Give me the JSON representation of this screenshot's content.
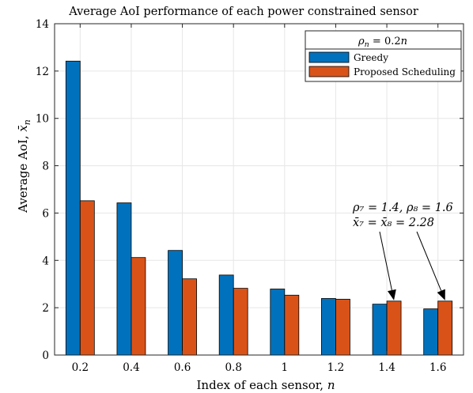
{
  "chart_data": {
    "type": "bar",
    "title": "Average AoI performance of each power constrained sensor",
    "xlabel": "Index of each sensor, ",
    "xlabel_var": "n",
    "ylabel": "Average AoI, ",
    "ylabel_var": "x̄",
    "ylabel_sub": "n",
    "categories": [
      "0.2",
      "0.4",
      "0.6",
      "0.8",
      "1",
      "1.2",
      "1.4",
      "1.6"
    ],
    "ylim": [
      0,
      14
    ],
    "yticks": [
      "0",
      "2",
      "4",
      "6",
      "8",
      "10",
      "12",
      "14"
    ],
    "grid": true,
    "legend_position": "top-right",
    "legend_title_var": "ρ",
    "legend_title_sub": "n",
    "legend_title_rest": " = 0.2",
    "legend_title_tail": "n",
    "series": [
      {
        "name": "Greedy",
        "color": "#0072BD",
        "values": [
          12.42,
          6.43,
          4.42,
          3.38,
          2.79,
          2.39,
          2.15,
          1.95
        ]
      },
      {
        "name": "Proposed Scheduling",
        "color": "#D95319",
        "values": [
          6.52,
          4.12,
          3.22,
          2.82,
          2.53,
          2.36,
          2.28,
          2.28
        ]
      }
    ],
    "annotation": {
      "line1": "ρ₇ = 1.4, ρ₈ = 1.6",
      "line2": "x̄₇ = x̄₈ = 2.28",
      "targets": [
        {
          "category": "1.4",
          "series": 1
        },
        {
          "category": "1.6",
          "series": 1
        }
      ]
    }
  }
}
